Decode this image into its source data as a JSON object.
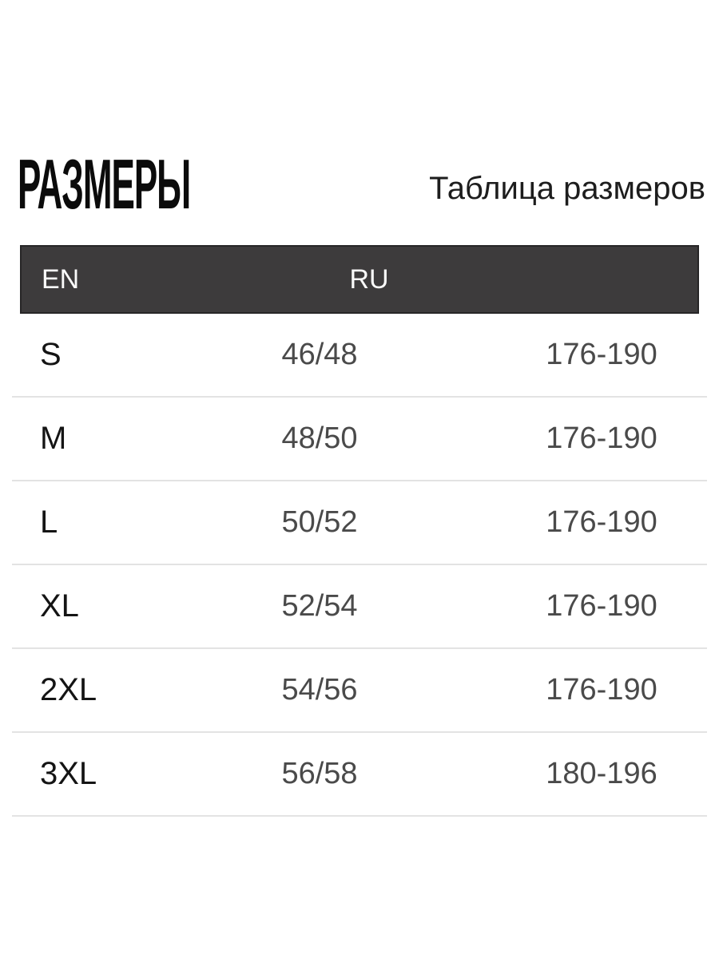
{
  "page": {
    "title": "РАЗМЕРЫ",
    "subtitle": "Таблица размеров"
  },
  "table": {
    "headers": {
      "en": "EN",
      "ru": "RU",
      "height": ""
    },
    "rows": [
      {
        "en": "S",
        "ru": "46/48",
        "height": "176-190"
      },
      {
        "en": "M",
        "ru": "48/50",
        "height": "176-190"
      },
      {
        "en": "L",
        "ru": "50/52",
        "height": "176-190"
      },
      {
        "en": "XL",
        "ru": "52/54",
        "height": "176-190"
      },
      {
        "en": "2XL",
        "ru": "54/56",
        "height": "176-190"
      },
      {
        "en": "3XL",
        "ru": "56/58",
        "height": "180-196"
      }
    ]
  },
  "colors": {
    "header_bg": "#3d3b3c",
    "header_border": "#272627",
    "header_text": "#fafafa",
    "row_divider": "#e3e3e3",
    "size_text": "#141414",
    "value_text": "#4a4a4a",
    "title_text": "#0b0b0b",
    "subtitle_text": "#1d1d1d"
  }
}
